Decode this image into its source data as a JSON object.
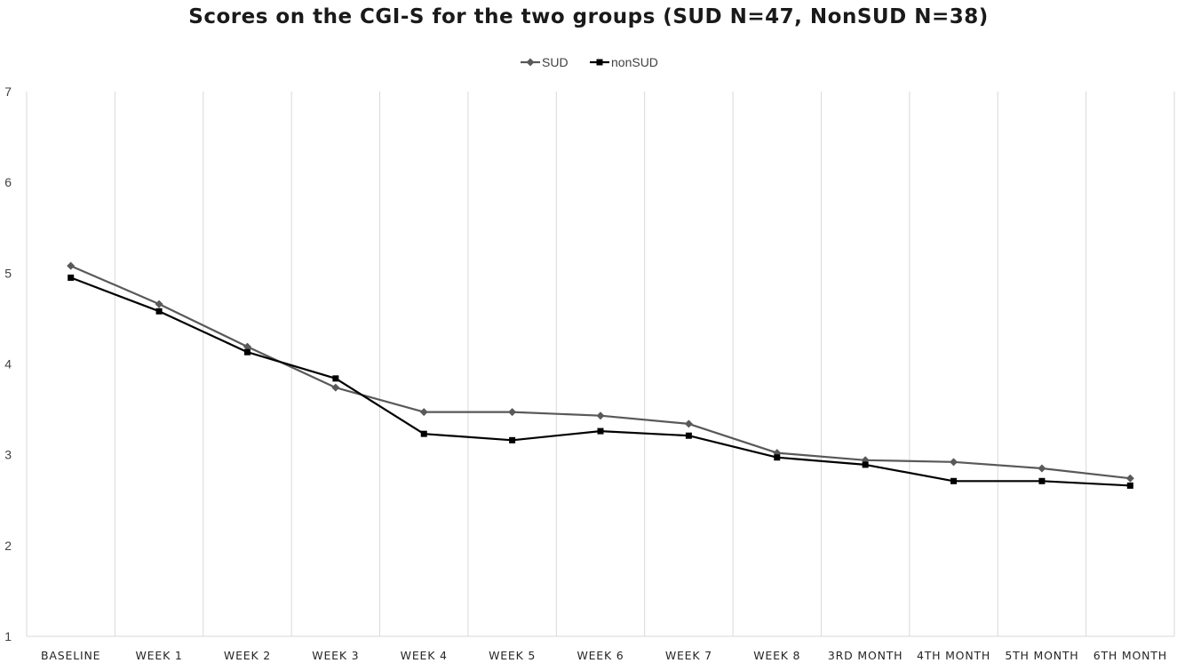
{
  "chart_data": {
    "type": "line",
    "title": "Scores on the CGI-S for the two groups (SUD N=47, NonSUD N=38)",
    "xlabel": "",
    "ylabel": "",
    "ylim": [
      1,
      7
    ],
    "yticks": [
      1,
      2,
      3,
      4,
      5,
      6,
      7
    ],
    "grid": "vertical",
    "legend_position": "top",
    "categories": [
      "BASELINE",
      "WEEK 1",
      "WEEK 2",
      "WEEK 3",
      "WEEK 4",
      "WEEK 5",
      "WEEK 6",
      "WEEK 7",
      "WEEK 8",
      "3RD MONTH",
      "4TH MONTH",
      "5TH MONTH",
      "6TH MONTH"
    ],
    "series": [
      {
        "name": "SUD",
        "color": "#595959",
        "marker": "diamond",
        "values": [
          5.08,
          4.66,
          4.19,
          3.74,
          3.47,
          3.47,
          3.43,
          3.34,
          3.02,
          2.94,
          2.92,
          2.85,
          2.74
        ]
      },
      {
        "name": "nonSUD",
        "color": "#000000",
        "marker": "square",
        "values": [
          4.95,
          4.58,
          4.13,
          3.84,
          3.23,
          3.16,
          3.26,
          3.21,
          2.97,
          2.89,
          2.71,
          2.71,
          2.66
        ]
      }
    ]
  }
}
